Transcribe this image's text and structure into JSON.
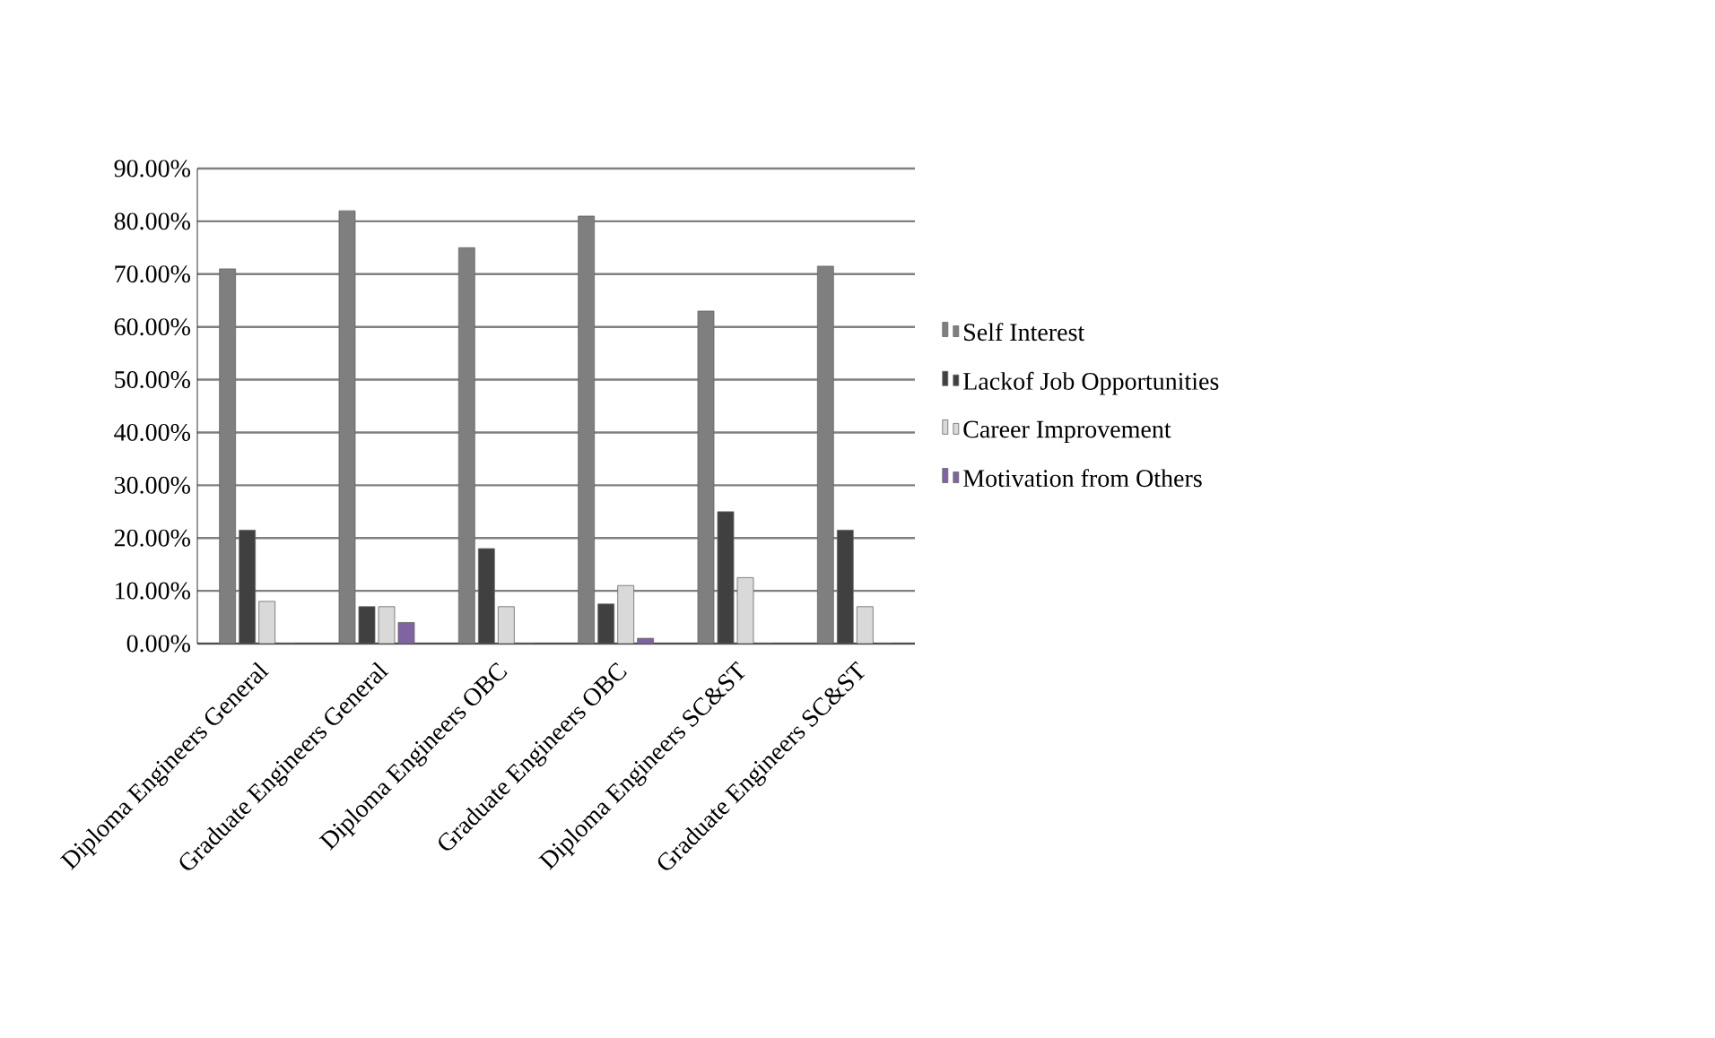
{
  "chart_data": {
    "type": "bar",
    "categories": [
      "Diploma Engineers General",
      "Graduate Engineers General",
      "Diploma Engineers OBC",
      "Graduate Engineers OBC",
      "Diploma Engineers SC&ST",
      "Graduate Engineers SC&ST"
    ],
    "series": [
      {
        "name": "Self Interest",
        "color": "#7f7f7f",
        "values": [
          71,
          82,
          75,
          81,
          63,
          71.5
        ]
      },
      {
        "name": "Lackof  Job Opportunities",
        "color": "#404040",
        "values": [
          21.5,
          7,
          18,
          7.5,
          25,
          21.5
        ]
      },
      {
        "name": "Career Improvement",
        "color": "#d9d9d9",
        "values": [
          8,
          7,
          7,
          11,
          12.5,
          7
        ]
      },
      {
        "name": "Motivation from Others",
        "color": "#8064a2",
        "values": [
          0,
          4,
          0,
          1,
          0,
          0
        ]
      }
    ],
    "ylim": [
      0,
      90
    ],
    "yticks": [
      {
        "value": 0,
        "label": "0.00%"
      },
      {
        "value": 10,
        "label": "10.00%"
      },
      {
        "value": 20,
        "label": "20.00%"
      },
      {
        "value": 30,
        "label": "30.00%"
      },
      {
        "value": 40,
        "label": "40.00%"
      },
      {
        "value": 50,
        "label": "50.00%"
      },
      {
        "value": 60,
        "label": "60.00%"
      },
      {
        "value": 70,
        "label": "70.00%"
      },
      {
        "value": 80,
        "label": "80.00%"
      },
      {
        "value": 90,
        "label": "90.00%"
      }
    ],
    "grid": "y",
    "legend": "right"
  }
}
